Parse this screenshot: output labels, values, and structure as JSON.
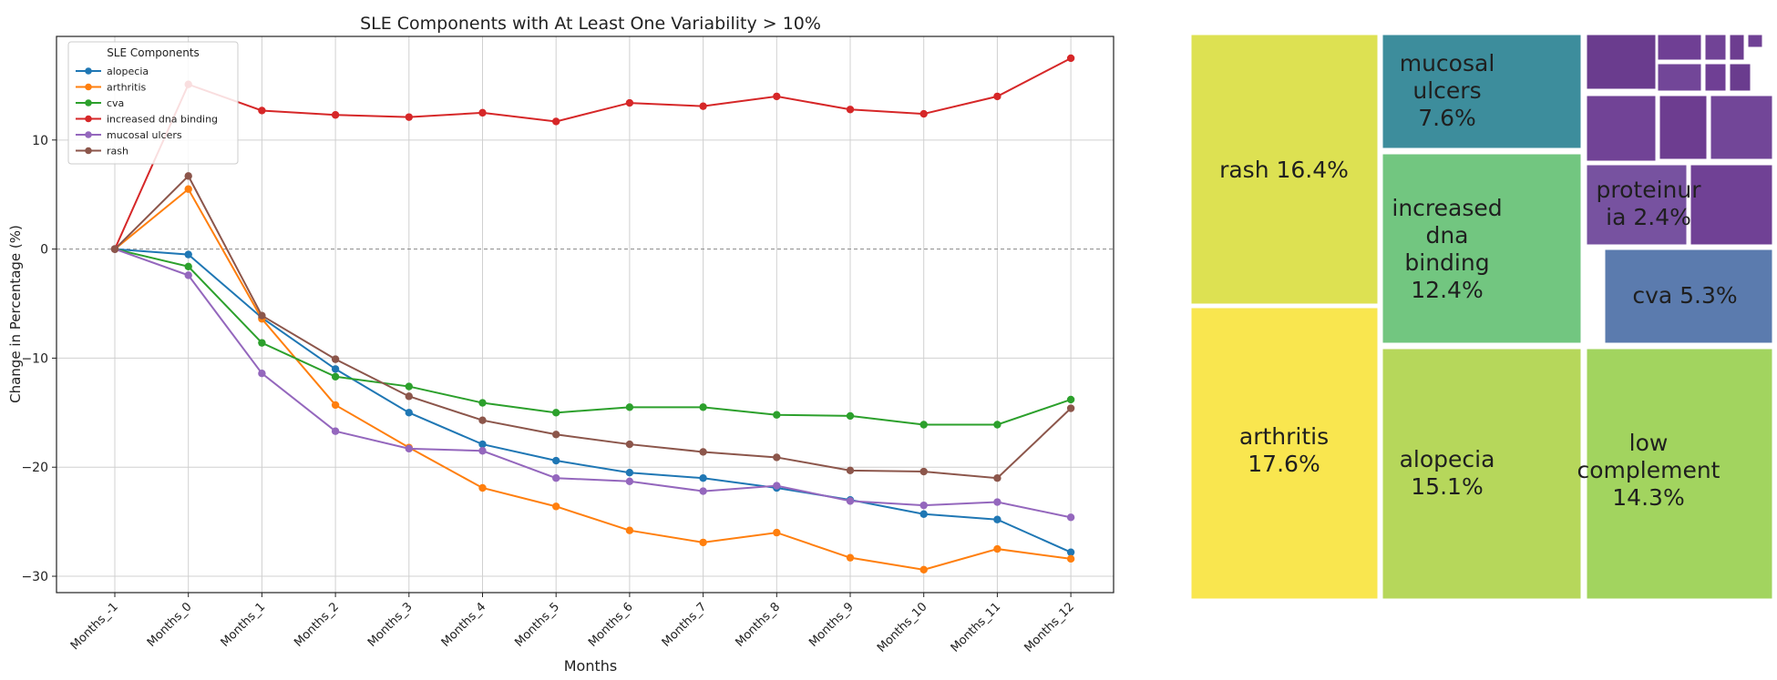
{
  "line_chart": {
    "title": "SLE Components with At Least One Variability > 10%",
    "xlabel": "Months",
    "ylabel": "Change in Percentage (%)",
    "legend_title": "SLE Components",
    "legend_position": "top-left",
    "categories": [
      "Months_-1",
      "Months_0",
      "Months_1",
      "Months_2",
      "Months_3",
      "Months_4",
      "Months_5",
      "Months_6",
      "Months_7",
      "Months_8",
      "Months_9",
      "Months_10",
      "Months_11",
      "Months_12"
    ],
    "yticks": [
      "10",
      "0",
      "−10",
      "−20",
      "−30"
    ]
  },
  "treemap": {
    "labels": {
      "rash": "rash 16.4%",
      "arthritis": "arthritis 17.6%",
      "mucosal": "mucosal ulcers 7.6%",
      "dna": "increased dna binding 12.4%",
      "alopecia": "alopecia 15.1%",
      "lowcomp": "low complement 14.3%",
      "prot": "proteinuria 2.4%",
      "cva": "cva 5.3%"
    }
  },
  "chart_data": [
    {
      "type": "line",
      "title": "SLE Components with At Least One Variability > 10%",
      "xlabel": "Months",
      "ylabel": "Change in Percentage (%)",
      "x": [
        "Months_-1",
        "Months_0",
        "Months_1",
        "Months_2",
        "Months_3",
        "Months_4",
        "Months_5",
        "Months_6",
        "Months_7",
        "Months_8",
        "Months_9",
        "Months_10",
        "Months_11",
        "Months_12"
      ],
      "ylim": [
        -31.5,
        19.5
      ],
      "grid": true,
      "legend": "top-left",
      "series": [
        {
          "name": "alopecia",
          "color": "#1f77b4",
          "values": [
            0,
            -0.5,
            -6.3,
            -11,
            -15,
            -17.9,
            -19.4,
            -20.5,
            -21,
            -21.9,
            -23,
            -24.3,
            -24.8,
            -27.8
          ]
        },
        {
          "name": "arthritis",
          "color": "#ff7f0e",
          "values": [
            0,
            5.5,
            -6.4,
            -14.3,
            -18.2,
            -21.9,
            -23.6,
            -25.8,
            -26.9,
            -26,
            -28.3,
            -29.4,
            -27.5,
            -28.4
          ]
        },
        {
          "name": "cva",
          "color": "#2ca02c",
          "values": [
            0,
            -1.6,
            -8.6,
            -11.7,
            -12.6,
            -14.1,
            -15,
            -14.5,
            -14.5,
            -15.2,
            -15.3,
            -16.1,
            -16.1,
            -13.8
          ]
        },
        {
          "name": "increased dna binding",
          "color": "#d62728",
          "values": [
            0,
            15.1,
            12.7,
            12.3,
            12.1,
            12.5,
            11.7,
            13.4,
            13.1,
            14,
            12.8,
            12.4,
            14,
            17.5
          ]
        },
        {
          "name": "mucosal ulcers",
          "color": "#9467bd",
          "values": [
            0,
            -2.4,
            -11.4,
            -16.7,
            -18.3,
            -18.5,
            -21,
            -21.3,
            -22.2,
            -21.7,
            -23.1,
            -23.5,
            -23.2,
            -24.6
          ]
        },
        {
          "name": "rash",
          "color": "#8c564b",
          "values": [
            0,
            6.7,
            -6.1,
            -10.1,
            -13.5,
            -15.7,
            -17,
            -17.9,
            -18.6,
            -19.1,
            -20.3,
            -20.4,
            -21,
            -14.6
          ]
        }
      ]
    },
    {
      "type": "treemap",
      "items": [
        {
          "name": "arthritis",
          "value": 17.6,
          "color": "#f9e64f"
        },
        {
          "name": "rash",
          "value": 16.4,
          "color": "#dde152"
        },
        {
          "name": "alopecia",
          "value": 15.1,
          "color": "#b6d75b"
        },
        {
          "name": "low complement",
          "value": 14.3,
          "color": "#a2d45f"
        },
        {
          "name": "increased dna binding",
          "value": 12.4,
          "color": "#72c680"
        },
        {
          "name": "mucosal ulcers",
          "value": 7.6,
          "color": "#3d8d9c"
        },
        {
          "name": "cva",
          "value": 5.3,
          "color": "#5b7bae"
        },
        {
          "name": "proteinuria",
          "value": 2.4,
          "color": "#7752a0"
        }
      ],
      "small_cell_colors": [
        "#6a3c8e",
        "#6f3f94",
        "#714396",
        "#6d3d90",
        "#704195",
        "#724698"
      ]
    }
  ]
}
